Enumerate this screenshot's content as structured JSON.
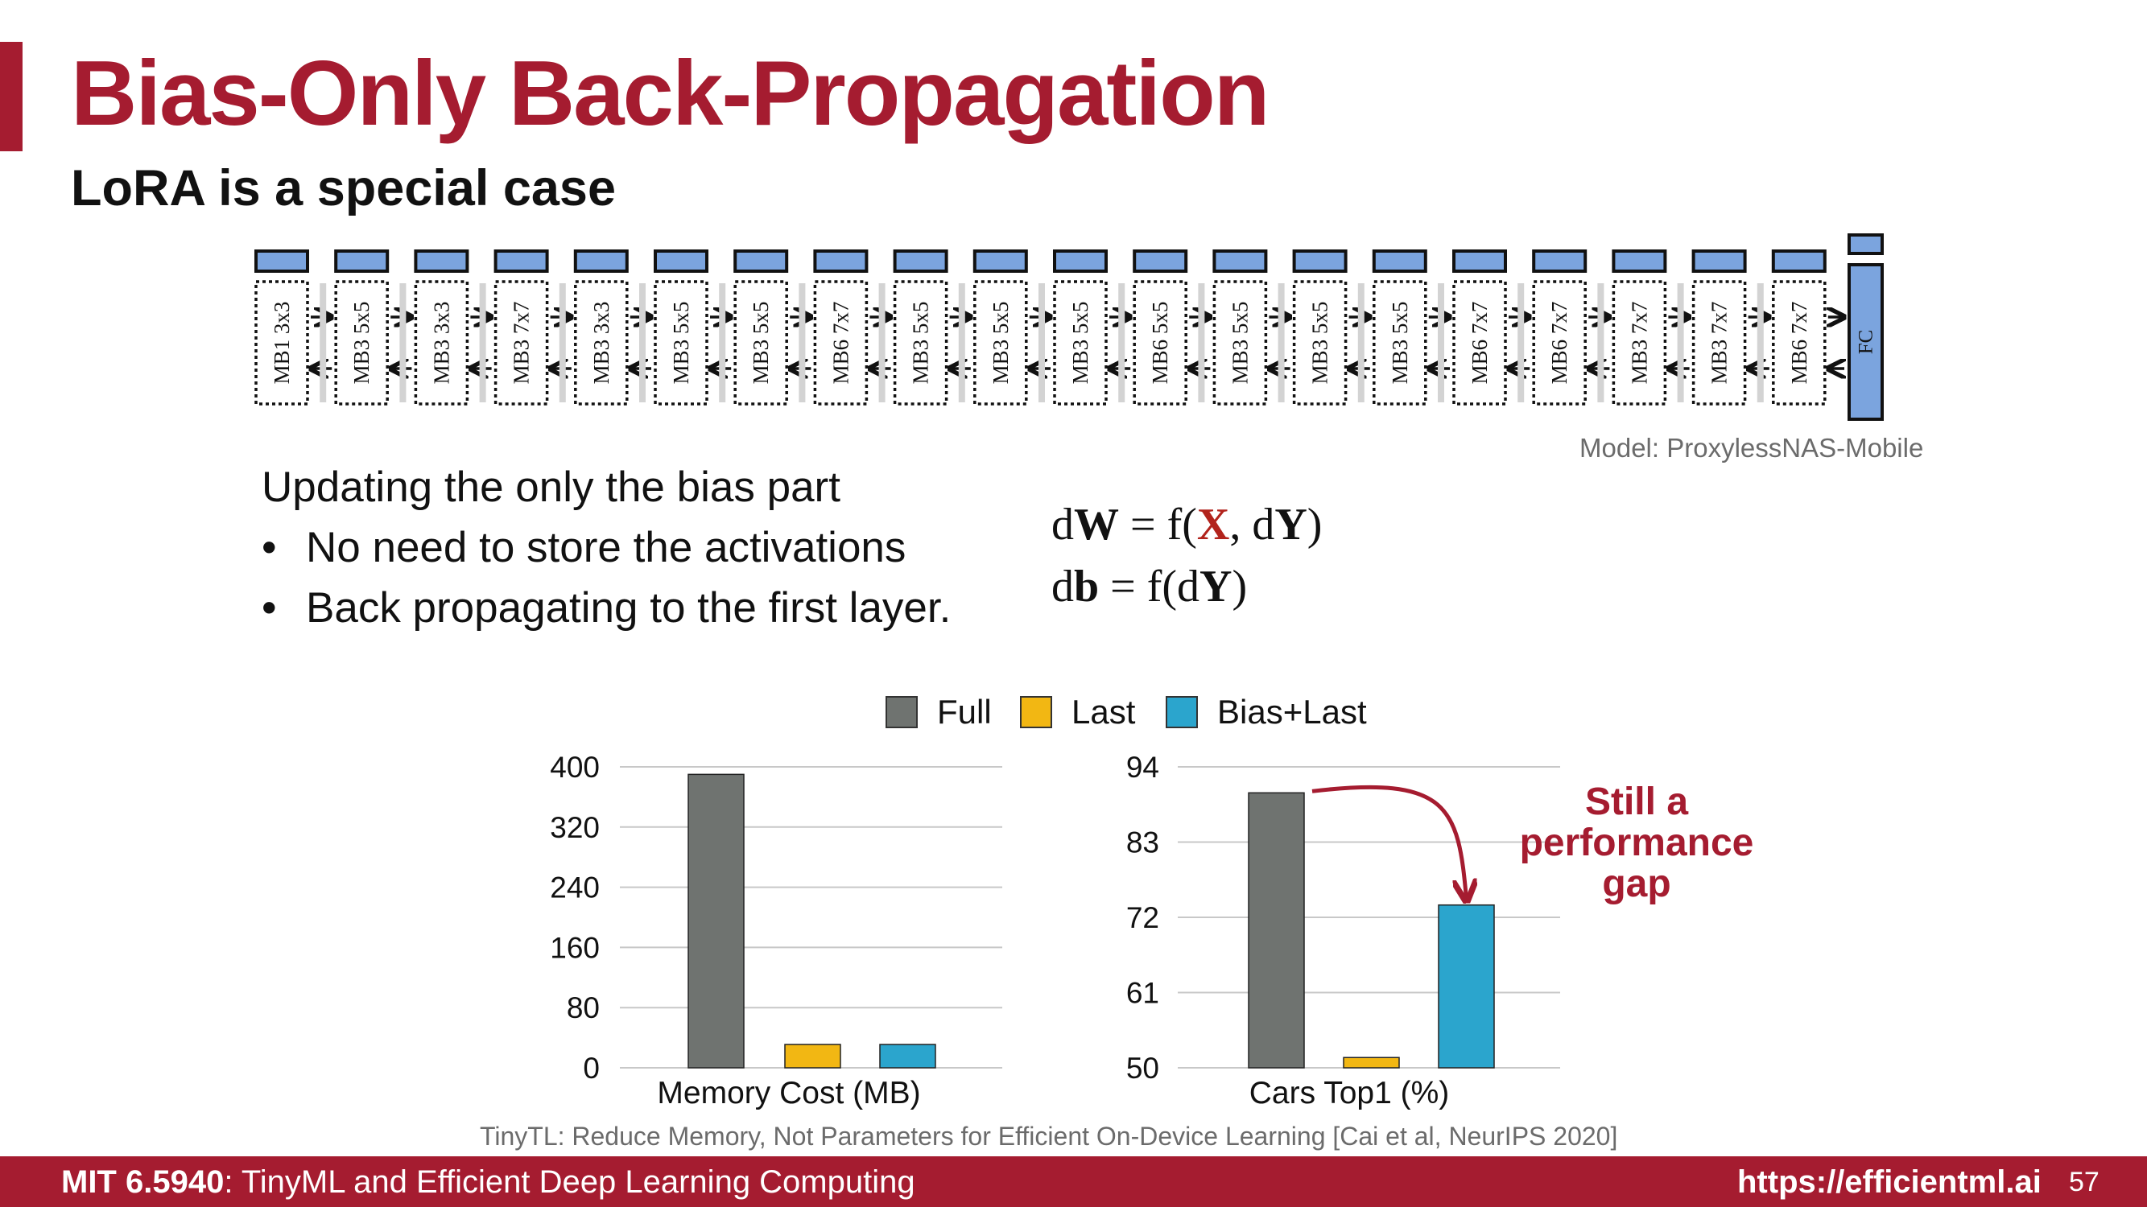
{
  "slide": {
    "title": "Bias-Only Back-Propagation",
    "subtitle": "LoRA is a special case",
    "accent_color": "#a51c30"
  },
  "network": {
    "blocks": [
      "MB1 3x3",
      "MB3 5x5",
      "MB3 3x3",
      "MB3 7x7",
      "MB3 3x3",
      "MB3 5x5",
      "MB3 5x5",
      "MB6 7x7",
      "MB3 5x5",
      "MB3 5x5",
      "MB3 5x5",
      "MB6 5x5",
      "MB3 5x5",
      "MB3 5x5",
      "MB3 5x5",
      "MB6 7x7",
      "MB6 7x7",
      "MB3 7x7",
      "MB3 7x7",
      "MB6 7x7"
    ],
    "final_block": "FC",
    "caption": "Model: ProxylessNAS-Mobile",
    "bias_color": "#7ba4de"
  },
  "bullets": {
    "intro": "Updating the only the bias part",
    "items": [
      "No need to store the activations",
      "Back propagating to the first layer."
    ]
  },
  "equations": {
    "dw": {
      "a": "d",
      "b": "W",
      "c": " = f(",
      "d": "X",
      "e": ", d",
      "f": "Y",
      "g": ")"
    },
    "db": {
      "a": "d",
      "b": "b",
      "c": " = f(d",
      "d": "Y",
      "e": ")"
    }
  },
  "chart_data": [
    {
      "type": "bar",
      "title": "",
      "xlabel": "Memory Cost (MB)",
      "ylabel": "",
      "categories": [
        "Memory Cost (MB)"
      ],
      "ylim": [
        0,
        400
      ],
      "yticks": [
        0,
        80,
        160,
        240,
        320,
        400
      ],
      "grid": true,
      "series": [
        {
          "name": "Full",
          "color": "#6f7370",
          "values": [
            390
          ]
        },
        {
          "name": "Last",
          "color": "#f2b713",
          "values": [
            31
          ]
        },
        {
          "name": "Bias+Last",
          "color": "#2ba5cd",
          "values": [
            31
          ]
        }
      ]
    },
    {
      "type": "bar",
      "title": "",
      "xlabel": "Cars Top1 (%)",
      "ylabel": "",
      "categories": [
        "Cars Top1 (%)"
      ],
      "ylim": [
        50,
        94
      ],
      "yticks": [
        50,
        61,
        72,
        83,
        94
      ],
      "grid": true,
      "series": [
        {
          "name": "Full",
          "color": "#6f7370",
          "values": [
            90.2
          ]
        },
        {
          "name": "Last",
          "color": "#f2b713",
          "values": [
            51.5
          ]
        },
        {
          "name": "Bias+Last",
          "color": "#2ba5cd",
          "values": [
            73.8
          ]
        }
      ],
      "annotation": {
        "lines": [
          "Still a",
          "performance",
          "gap"
        ],
        "color": "#a51c30"
      }
    }
  ],
  "legend": {
    "position": "top-center"
  },
  "citation": "TinyTL: Reduce Memory, Not Parameters for Efficient On-Device Learning [Cai et al, NeurIPS 2020]",
  "footer": {
    "course_code": "MIT 6.5940",
    "course_rest": ": TinyML and Efficient Deep Learning Computing",
    "url": "https://efficientml.ai",
    "page": "57"
  }
}
